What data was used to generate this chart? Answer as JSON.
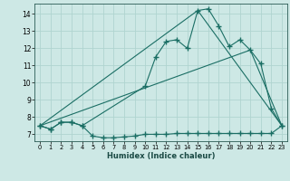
{
  "xlabel": "Humidex (Indice chaleur)",
  "bg_color": "#cde8e5",
  "grid_color": "#b0d4d0",
  "line_color": "#1a6e64",
  "xlim": [
    -0.5,
    23.5
  ],
  "ylim": [
    6.6,
    14.6
  ],
  "xticks": [
    0,
    1,
    2,
    3,
    4,
    5,
    6,
    7,
    8,
    9,
    10,
    11,
    12,
    13,
    14,
    15,
    16,
    17,
    18,
    19,
    20,
    21,
    22,
    23
  ],
  "yticks": [
    7,
    8,
    9,
    10,
    11,
    12,
    13,
    14
  ],
  "series1_x": [
    0,
    1,
    2,
    3,
    4,
    5,
    6,
    7,
    8,
    9,
    10,
    11,
    12,
    13,
    14,
    15,
    16,
    17,
    18,
    19,
    20,
    21,
    22,
    23
  ],
  "series1_y": [
    7.5,
    7.3,
    7.7,
    7.7,
    7.5,
    6.9,
    6.8,
    6.8,
    6.85,
    6.9,
    7.0,
    7.0,
    7.0,
    7.05,
    7.05,
    7.05,
    7.05,
    7.05,
    7.05,
    7.05,
    7.05,
    7.05,
    7.05,
    7.5
  ],
  "series2_x": [
    0,
    1,
    2,
    3,
    4,
    10,
    11,
    12,
    13,
    14,
    15,
    16,
    17,
    18,
    19,
    20,
    21,
    22,
    23
  ],
  "series2_y": [
    7.5,
    7.3,
    7.7,
    7.7,
    7.5,
    9.8,
    11.5,
    12.4,
    12.5,
    12.0,
    14.2,
    14.3,
    13.3,
    12.1,
    12.5,
    11.9,
    11.1,
    8.5,
    7.5
  ],
  "series3_x": [
    0,
    15,
    23
  ],
  "series3_y": [
    7.5,
    14.2,
    7.5
  ],
  "series4_x": [
    0,
    20,
    23
  ],
  "series4_y": [
    7.5,
    11.9,
    7.5
  ]
}
